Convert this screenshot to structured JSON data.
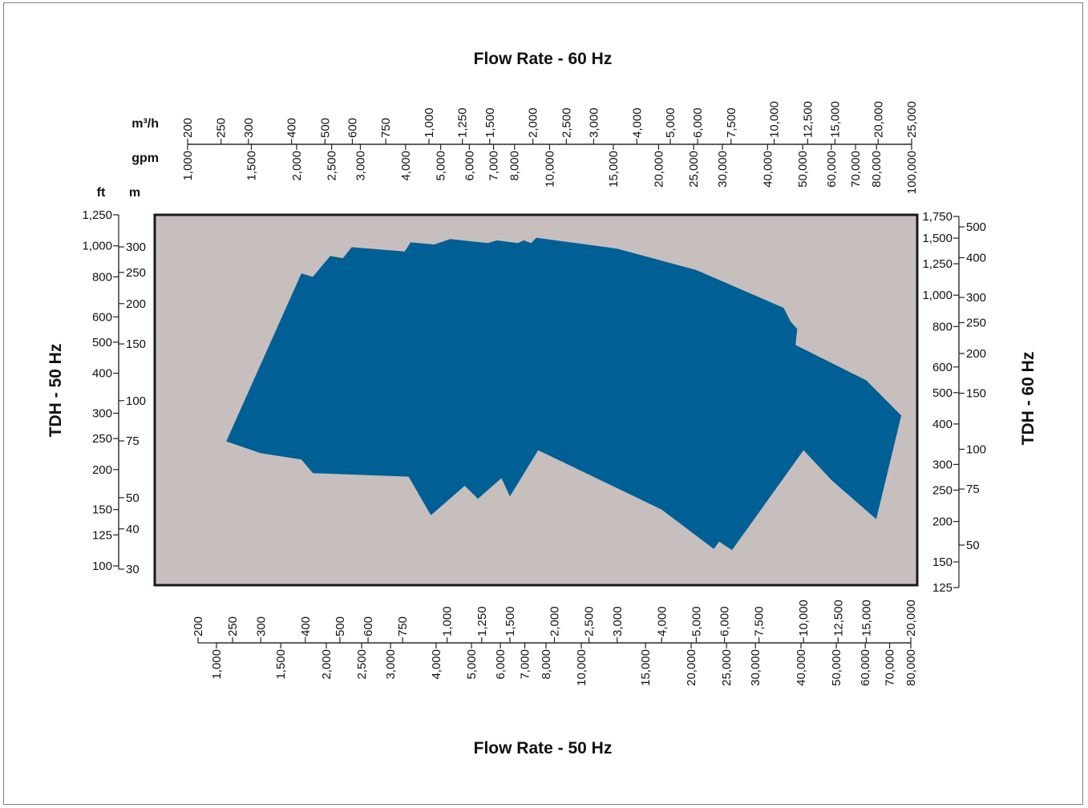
{
  "chart_data": {
    "type": "area",
    "title_top": "Flow Rate - 60 Hz",
    "title_bottom": "Flow Rate - 50 Hz",
    "title_left": "TDH - 50 Hz",
    "title_right": "TDH - 60 Hz",
    "units": {
      "m3h": "m³/h",
      "gpm": "gpm",
      "ft": "ft",
      "m": "m"
    },
    "scale": "log-log",
    "colors": {
      "plot_bg": "#c6bfbe",
      "region": "#005f94",
      "frame": "#1a1a1a"
    },
    "axes": {
      "top_m3h": {
        "range": [
          200,
          25000
        ],
        "ticks": [
          "200",
          "250",
          "300",
          "400",
          "500",
          "600",
          "750",
          "1,000",
          "1,250",
          "1,500",
          "2,000",
          "2,500",
          "3,000",
          "4,000",
          "5,000",
          "6,000",
          "7,500",
          "10,000",
          "12,500",
          "15,000",
          "20,000",
          "25,000"
        ]
      },
      "top_gpm": {
        "range": [
          1000,
          100000
        ],
        "ticks": [
          "1,000",
          "1,500",
          "2,000",
          "2,500",
          "3,000",
          "4,000",
          "5,000",
          "6,000",
          "7,000",
          "8,000",
          "10,000",
          "15,000",
          "20,000",
          "25,000",
          "30,000",
          "40,000",
          "50,000",
          "60,000",
          "70,000",
          "80,000",
          "100,000"
        ]
      },
      "bottom_m3h": {
        "range": [
          200,
          20000
        ],
        "ticks": [
          "200",
          "250",
          "300",
          "400",
          "500",
          "600",
          "750",
          "1,000",
          "1,250",
          "1,500",
          "2,000",
          "2,500",
          "3,000",
          "4,000",
          "5,000",
          "6,000",
          "7,500",
          "10,000",
          "12,500",
          "15,000",
          "20,000"
        ]
      },
      "bottom_gpm": {
        "range": [
          1000,
          80000
        ],
        "ticks": [
          "1,000",
          "1,500",
          "2,000",
          "2,500",
          "3,000",
          "4,000",
          "5,000",
          "6,000",
          "7,000",
          "8,000",
          "10,000",
          "15,000",
          "20,000",
          "25,000",
          "30,000",
          "40,000",
          "50,000",
          "60,000",
          "70,000",
          "80,000"
        ]
      },
      "left_ft": {
        "range": [
          100,
          1250
        ],
        "ticks": [
          "100",
          "125",
          "150",
          "200",
          "250",
          "300",
          "400",
          "500",
          "600",
          "800",
          "1,000",
          "1,250"
        ]
      },
      "left_m": {
        "range": [
          30,
          300
        ],
        "ticks": [
          "30",
          "40",
          "50",
          "75",
          "100",
          "150",
          "200",
          "250",
          "300"
        ]
      },
      "right_ft": {
        "range": [
          125,
          1750
        ],
        "ticks": [
          "125",
          "150",
          "200",
          "250",
          "300",
          "400",
          "500",
          "600",
          "800",
          "1,000",
          "1,250",
          "1,500",
          "1,750"
        ]
      },
      "right_m": {
        "range": [
          50,
          500
        ],
        "ticks": [
          "50",
          "75",
          "100",
          "150",
          "200",
          "250",
          "300",
          "400",
          "500"
        ]
      }
    },
    "series": [
      {
        "coverage_50hz": [
          {
            "flow_m3h": 240,
            "tdh_ft": 245
          },
          {
            "flow_m3h": 390,
            "tdh_ft": 820
          },
          {
            "flow_m3h": 420,
            "tdh_ft": 800
          },
          {
            "flow_m3h": 470,
            "tdh_ft": 930
          },
          {
            "flow_m3h": 510,
            "tdh_ft": 915
          },
          {
            "flow_m3h": 540,
            "tdh_ft": 990
          },
          {
            "flow_m3h": 760,
            "tdh_ft": 960
          },
          {
            "flow_m3h": 790,
            "tdh_ft": 1025
          },
          {
            "flow_m3h": 920,
            "tdh_ft": 1010
          },
          {
            "flow_m3h": 1020,
            "tdh_ft": 1050
          },
          {
            "flow_m3h": 1300,
            "tdh_ft": 1020
          },
          {
            "flow_m3h": 1380,
            "tdh_ft": 1040
          },
          {
            "flow_m3h": 1580,
            "tdh_ft": 1020
          },
          {
            "flow_m3h": 1640,
            "tdh_ft": 1040
          },
          {
            "flow_m3h": 1720,
            "tdh_ft": 1020
          },
          {
            "flow_m3h": 1780,
            "tdh_ft": 1060
          },
          {
            "flow_m3h": 3000,
            "tdh_ft": 980
          },
          {
            "flow_m3h": 5000,
            "tdh_ft": 840
          },
          {
            "flow_m3h": 8800,
            "tdh_ft": 640
          },
          {
            "flow_m3h": 9200,
            "tdh_ft": 580
          },
          {
            "flow_m3h": 9600,
            "tdh_ft": 550
          },
          {
            "flow_m3h": 9500,
            "tdh_ft": 490
          },
          {
            "flow_m3h": 15000,
            "tdh_ft": 380
          },
          {
            "flow_m3h": 18800,
            "tdh_ft": 295
          },
          {
            "flow_m3h": 16000,
            "tdh_ft": 140
          },
          {
            "flow_m3h": 12000,
            "tdh_ft": 185
          },
          {
            "flow_m3h": 10000,
            "tdh_ft": 230
          },
          {
            "flow_m3h": 6300,
            "tdh_ft": 112
          },
          {
            "flow_m3h": 5800,
            "tdh_ft": 119
          },
          {
            "flow_m3h": 5600,
            "tdh_ft": 113
          },
          {
            "flow_m3h": 4000,
            "tdh_ft": 150
          },
          {
            "flow_m3h": 1800,
            "tdh_ft": 230
          },
          {
            "flow_m3h": 1500,
            "tdh_ft": 165
          },
          {
            "flow_m3h": 1420,
            "tdh_ft": 188
          },
          {
            "flow_m3h": 1220,
            "tdh_ft": 162
          },
          {
            "flow_m3h": 1120,
            "tdh_ft": 178
          },
          {
            "flow_m3h": 900,
            "tdh_ft": 144
          },
          {
            "flow_m3h": 780,
            "tdh_ft": 190
          },
          {
            "flow_m3h": 420,
            "tdh_ft": 195
          },
          {
            "flow_m3h": 390,
            "tdh_ft": 215
          },
          {
            "flow_m3h": 300,
            "tdh_ft": 225
          },
          {
            "flow_m3h": 240,
            "tdh_ft": 245
          }
        ]
      }
    ]
  }
}
